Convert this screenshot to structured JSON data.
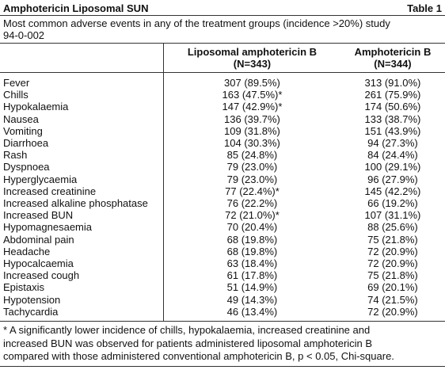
{
  "header": {
    "title": "Amphotericin Liposomal SUN",
    "label": "Table 1"
  },
  "caption": [
    "Most common adverse events in any of the treatment groups (incidence >20%) study",
    "94-0-002"
  ],
  "table": {
    "columns": [
      {
        "name": "Liposomal amphotericin B",
        "n": "(N=343)"
      },
      {
        "name": "Amphotericin B",
        "n": "(N=344)"
      }
    ],
    "rows": [
      [
        "Fever",
        "307 (89.5%)",
        "313 (91.0%)"
      ],
      [
        "Chills",
        "163 (47.5%)*",
        "261 (75.9%)"
      ],
      [
        "Hypokalaemia",
        "147 (42.9%)*",
        "174 (50.6%)"
      ],
      [
        "Nausea",
        "136 (39.7%)",
        "133 (38.7%)"
      ],
      [
        "Vomiting",
        "109 (31.8%)",
        "151 (43.9%)"
      ],
      [
        "Diarrhoea",
        "104 (30.3%)",
        "94 (27.3%)"
      ],
      [
        "Rash",
        "85 (24.8%)",
        "84 (24.4%)"
      ],
      [
        "Dyspnoea",
        "79 (23.0%)",
        "100 (29.1%)"
      ],
      [
        "Hyperglycaemia",
        "79 (23.0%)",
        "96 (27.9%)"
      ],
      [
        "Increased creatinine",
        "77 (22.4%)*",
        "145 (42.2%)"
      ],
      [
        "Increased alkaline phosphatase",
        "76 (22.2%)",
        "66 (19.2%)"
      ],
      [
        "Increased BUN",
        "72 (21.0%)*",
        "107 (31.1%)"
      ],
      [
        "Hypomagnesaemia",
        "70 (20.4%)",
        "88 (25.6%)"
      ],
      [
        "Abdominal pain",
        "68 (19.8%)",
        "75 (21.8%)"
      ],
      [
        "Headache",
        "68 (19.8%)",
        "72 (20.9%)"
      ],
      [
        "Hypocalcaemia",
        "63 (18.4%)",
        "72 (20.9%)"
      ],
      [
        "Increased cough",
        "61 (17.8%)",
        "75 (21.8%)"
      ],
      [
        "Epistaxis",
        "51 (14.9%)",
        "69 (20.1%)"
      ],
      [
        "Hypotension",
        "49 (14.3%)",
        "74 (21.5%)"
      ],
      [
        "Tachycardia",
        "46 (13.4%)",
        "72 (20.9%)"
      ]
    ]
  },
  "footnote": [
    "* A significantly lower incidence of chills, hypokalaemia, increased creatinine and",
    "increased BUN was observed for patients administered liposomal amphotericin B",
    "compared with those administered conventional amphotericin B, p < 0.05, Chi-square."
  ]
}
